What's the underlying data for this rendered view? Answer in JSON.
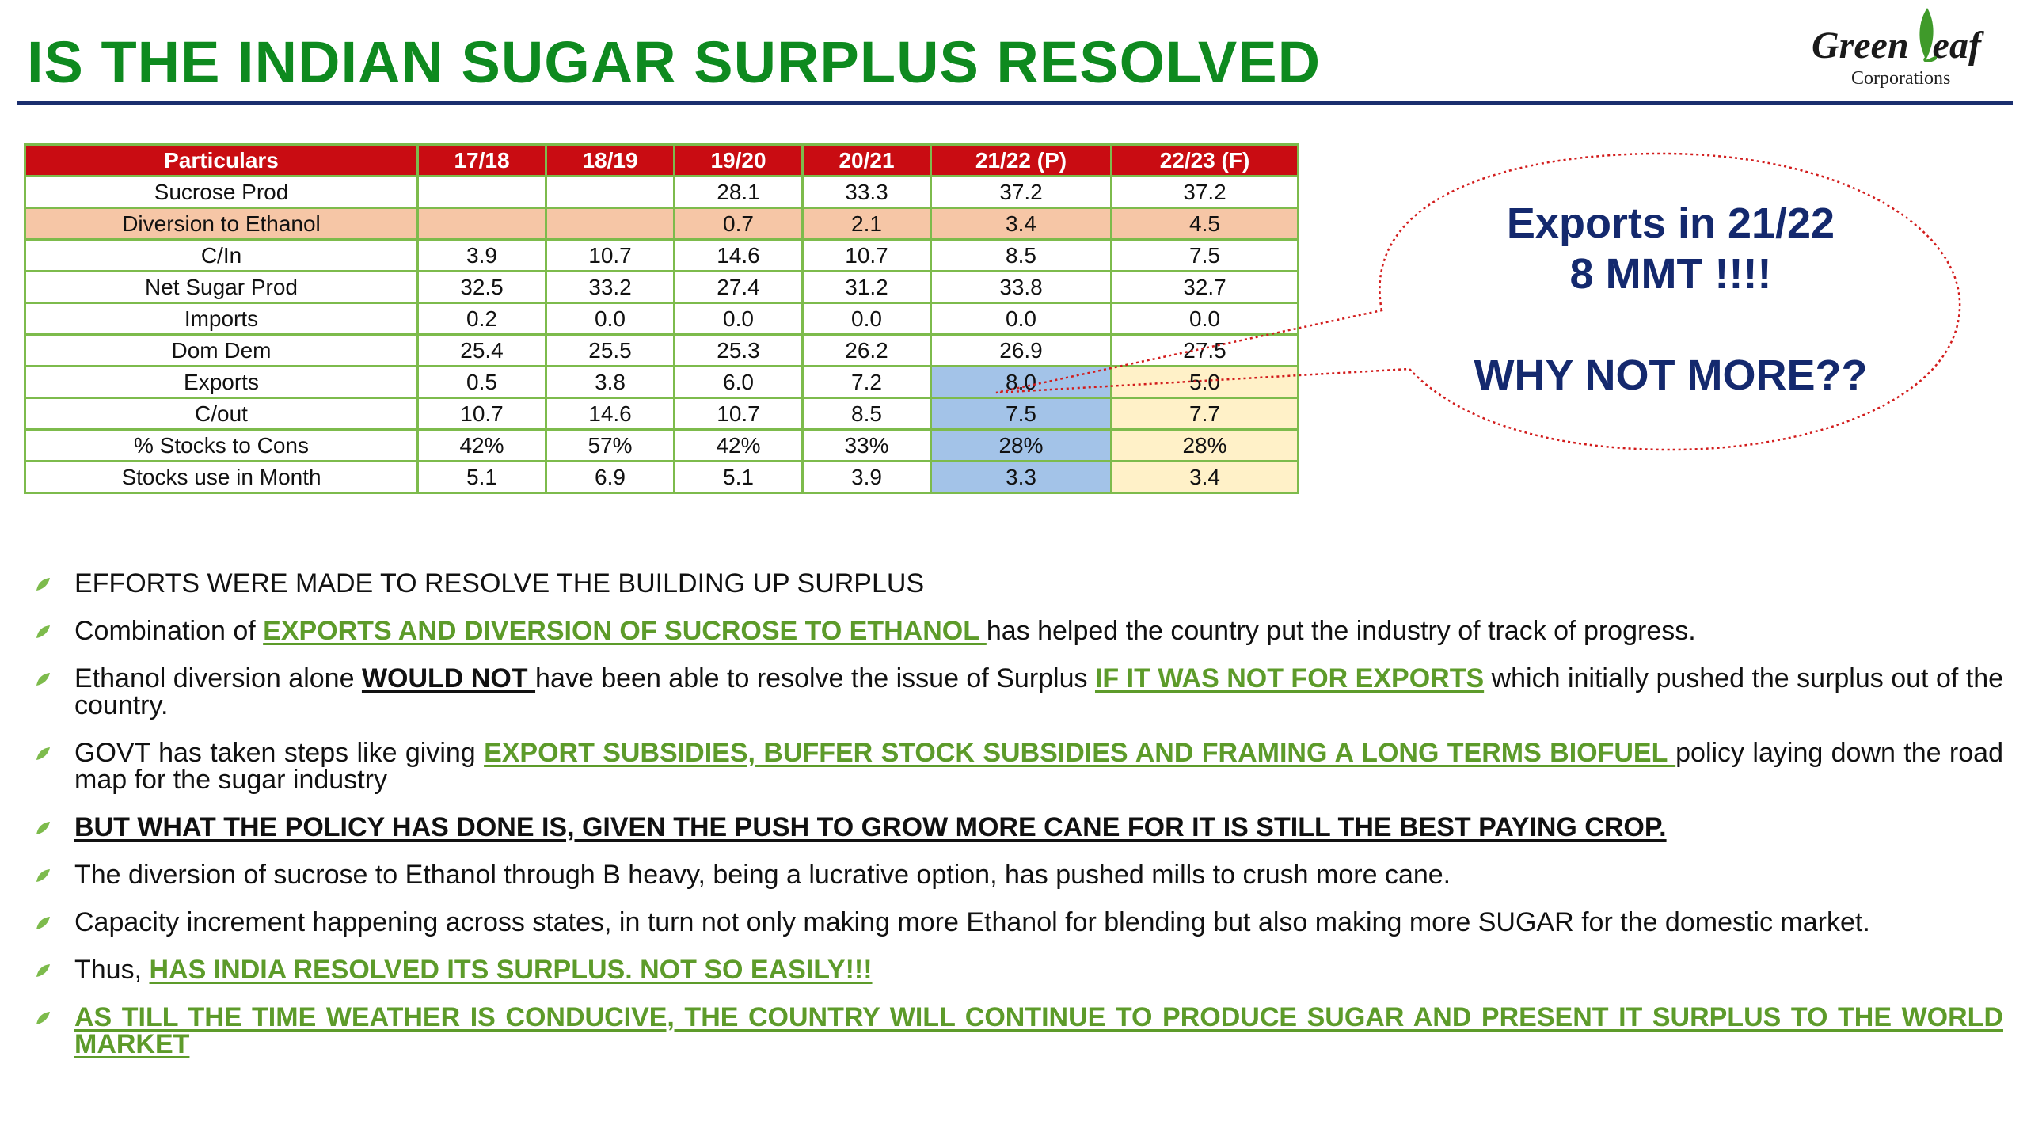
{
  "title": "IS THE INDIAN SUGAR SURPLUS RESOLVED",
  "logo": {
    "brand_pre": "Green",
    "brand_post": "eaf",
    "sub": "Corporations"
  },
  "table": {
    "headers": [
      "Particulars",
      "17/18",
      "18/19",
      "19/20",
      "20/21",
      "21/22 (P)",
      "22/23 (F)"
    ],
    "rows": [
      [
        "Sucrose Prod",
        "",
        "",
        "28.1",
        "33.3",
        "37.2",
        "37.2"
      ],
      [
        "Diversion to Ethanol",
        "",
        "",
        "0.7",
        "2.1",
        "3.4",
        "4.5"
      ],
      [
        "C/In",
        "3.9",
        "10.7",
        "14.6",
        "10.7",
        "8.5",
        "7.5"
      ],
      [
        "Net Sugar Prod",
        "32.5",
        "33.2",
        "27.4",
        "31.2",
        "33.8",
        "32.7"
      ],
      [
        "Imports",
        "0.2",
        "0.0",
        "0.0",
        "0.0",
        "0.0",
        "0.0"
      ],
      [
        "Dom Dem",
        "25.4",
        "25.5",
        "25.3",
        "26.2",
        "26.9",
        "27.5"
      ],
      [
        "Exports",
        "0.5",
        "3.8",
        "6.0",
        "7.2",
        "8.0",
        "5.0"
      ],
      [
        "C/out",
        "10.7",
        "14.6",
        "10.7",
        "8.5",
        "7.5",
        "7.7"
      ],
      [
        "% Stocks to Cons",
        "42%",
        "57%",
        "42%",
        "33%",
        "28%",
        "28%"
      ],
      [
        "Stocks use in Month",
        "5.1",
        "6.9",
        "5.1",
        "3.9",
        "3.3",
        "3.4"
      ]
    ]
  },
  "callout": {
    "line1": "Exports in 21/22",
    "line2": "8 MMT !!!!",
    "line3": "WHY NOT MORE??"
  },
  "bullets": {
    "b1": {
      "text": "EFFORTS WERE MADE TO RESOLVE THE BUILDING UP SURPLUS"
    },
    "b2": {
      "pre": "Combination of ",
      "hl": "EXPORTS AND DIVERSION OF SUCROSE TO ETHANOL ",
      "post": "has helped the country put the industry of track of progress."
    },
    "b3": {
      "pre": "Ethanol diversion alone ",
      "bold": "WOULD NOT ",
      "mid": "have been able to resolve the issue of Surplus ",
      "hl": "IF IT WAS NOT FOR EXPORTS",
      "post": " which initially pushed the surplus out of the country."
    },
    "b4": {
      "pre": "GOVT has taken steps like giving ",
      "hl": "EXPORT SUBSIDIES, BUFFER STOCK SUBSIDIES AND FRAMING A LONG TERMS BIOFUEL ",
      "post": "policy laying down the road map for the sugar industry"
    },
    "b5": {
      "bold": "BUT WHAT THE POLICY HAS DONE IS, GIVEN THE PUSH TO GROW MORE CANE FOR IT IS STILL THE BEST PAYING CROP."
    },
    "b6": {
      "text": "The diversion of sucrose to Ethanol through B heavy, being a lucrative option, has pushed mills to crush more cane."
    },
    "b7": {
      "text": "Capacity increment happening across states, in turn not only making more Ethanol for blending but also making more SUGAR for the domestic market."
    },
    "b8": {
      "pre": "Thus, ",
      "hl": "HAS INDIA RESOLVED ITS SURPLUS. NOT SO EASILY!!!"
    },
    "b9": {
      "hl": "AS TILL THE TIME WEATHER IS CONDUCIVE, THE COUNTRY WILL CONTINUE TO PRODUCE SUGAR AND PRESENT IT SURPLUS TO THE WORLD MARKET"
    }
  },
  "colors": {
    "title_green": "#0e8a1f",
    "header_red": "#c90c12",
    "highlight_blue": "#a3c3e8",
    "highlight_cream": "#fff1c8",
    "diversion_peach": "#f6c6a6",
    "callout_navy": "#14296e",
    "link_green": "#5d9b2a"
  }
}
